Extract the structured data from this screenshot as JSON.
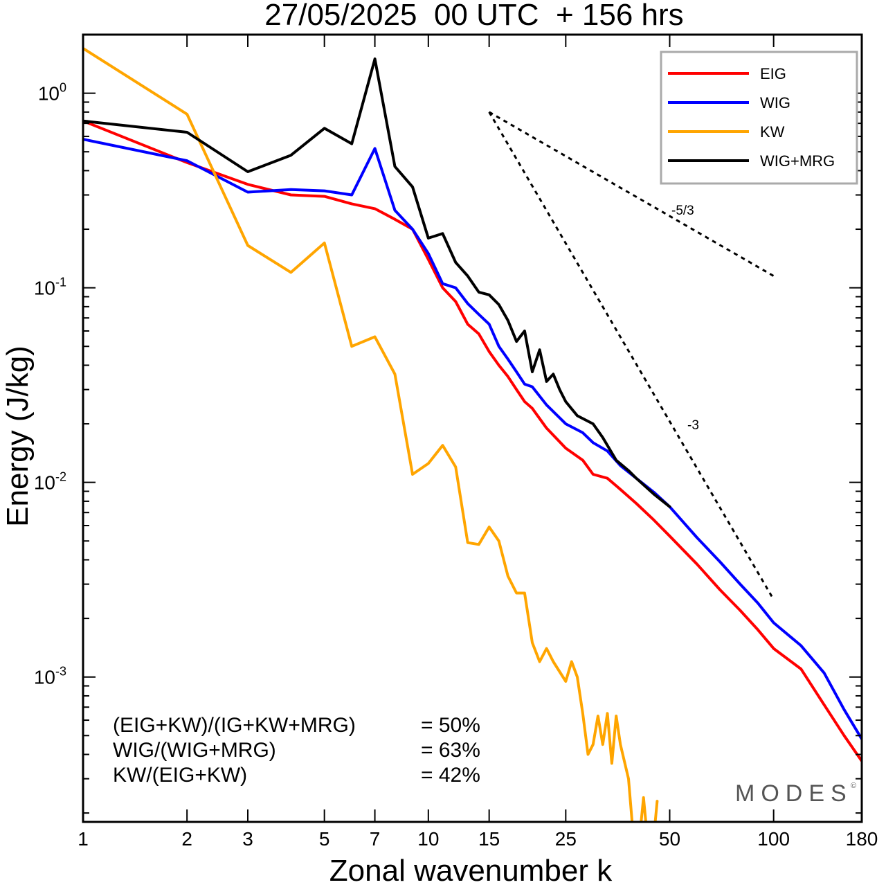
{
  "chart_data": {
    "type": "line",
    "title": "27/05/2025  00 UTC  + 156 hrs",
    "xlabel": "Zonal wavenumber k",
    "ylabel": "Energy (J/kg)",
    "xscale": "log",
    "yscale": "log",
    "xlim": [
      1,
      180
    ],
    "ylim": [
      0.00018,
      2.0
    ],
    "x_ticks": [
      1,
      2,
      3,
      5,
      7,
      10,
      15,
      25,
      50,
      100,
      180
    ],
    "y_ticks": [
      {
        "value": 1,
        "base": "10",
        "exp": "0"
      },
      {
        "value": 0.1,
        "base": "10",
        "exp": "-1"
      },
      {
        "value": 0.01,
        "base": "10",
        "exp": "-2"
      },
      {
        "value": 0.001,
        "base": "10",
        "exp": "-3"
      }
    ],
    "legend_position": "top-right",
    "series": [
      {
        "name": "EIG",
        "color": "#ff0000",
        "x": [
          1,
          2,
          3,
          4,
          5,
          6,
          7,
          8,
          9,
          10,
          11,
          12,
          13,
          14,
          15,
          16,
          17,
          18,
          19,
          20,
          22,
          25,
          28,
          30,
          33,
          36,
          40,
          45,
          50,
          60,
          70,
          80,
          90,
          100,
          120,
          140,
          160,
          180
        ],
        "y": [
          0.72,
          0.44,
          0.34,
          0.3,
          0.295,
          0.27,
          0.255,
          0.225,
          0.2,
          0.14,
          0.1,
          0.085,
          0.065,
          0.058,
          0.047,
          0.04,
          0.035,
          0.03,
          0.026,
          0.024,
          0.019,
          0.015,
          0.013,
          0.011,
          0.0105,
          0.0092,
          0.0078,
          0.0064,
          0.0053,
          0.0038,
          0.0028,
          0.0022,
          0.00175,
          0.0014,
          0.0011,
          0.00072,
          0.0005,
          0.00037
        ]
      },
      {
        "name": "WIG",
        "color": "#0000ff",
        "x": [
          1,
          2,
          3,
          4,
          5,
          6,
          7,
          8,
          9,
          10,
          11,
          12,
          13,
          14,
          15,
          16,
          17,
          18,
          19,
          20,
          22,
          25,
          28,
          30,
          33,
          36,
          40,
          45,
          50,
          60,
          70,
          80,
          90,
          100,
          120,
          140,
          160,
          180
        ],
        "y": [
          0.58,
          0.45,
          0.31,
          0.32,
          0.315,
          0.3,
          0.52,
          0.25,
          0.2,
          0.15,
          0.105,
          0.1,
          0.083,
          0.073,
          0.065,
          0.05,
          0.043,
          0.037,
          0.032,
          0.031,
          0.025,
          0.02,
          0.018,
          0.016,
          0.0145,
          0.0122,
          0.0105,
          0.0089,
          0.0075,
          0.0052,
          0.0039,
          0.003,
          0.0024,
          0.0019,
          0.00145,
          0.00105,
          0.00068,
          0.00048
        ]
      },
      {
        "name": "KW",
        "color": "#ffa500",
        "x": [
          1,
          2,
          3,
          4,
          5,
          6,
          7,
          8,
          9,
          10,
          11,
          12,
          13,
          14,
          15,
          16,
          17,
          18,
          19,
          20,
          21,
          22,
          23,
          25,
          26,
          27,
          28,
          29,
          30,
          31,
          32,
          33,
          34,
          35,
          36,
          38,
          40,
          42,
          44,
          46
        ],
        "y": [
          1.7,
          0.78,
          0.165,
          0.12,
          0.17,
          0.05,
          0.056,
          0.036,
          0.011,
          0.0125,
          0.0155,
          0.012,
          0.0049,
          0.0048,
          0.0059,
          0.005,
          0.0033,
          0.0027,
          0.0027,
          0.0015,
          0.0012,
          0.0014,
          0.0012,
          0.00095,
          0.0012,
          0.001,
          0.00065,
          0.0004,
          0.00045,
          0.00063,
          0.00045,
          0.00065,
          0.00036,
          0.00063,
          0.00045,
          0.0003,
          0.0001,
          0.00024,
          0.0001,
          0.00023
        ]
      },
      {
        "name": "WIG+MRG",
        "color": "#000000",
        "x": [
          1,
          2,
          3,
          4,
          5,
          6,
          7,
          8,
          9,
          10,
          11,
          12,
          13,
          14,
          15,
          16,
          17,
          18,
          19,
          20,
          21,
          22,
          23,
          24,
          25,
          27,
          30,
          32,
          35,
          38,
          40,
          45,
          50
        ],
        "y": [
          0.72,
          0.63,
          0.395,
          0.48,
          0.66,
          0.55,
          1.5,
          0.42,
          0.33,
          0.18,
          0.19,
          0.135,
          0.115,
          0.095,
          0.092,
          0.082,
          0.068,
          0.053,
          0.06,
          0.037,
          0.048,
          0.033,
          0.036,
          0.03,
          0.026,
          0.022,
          0.02,
          0.017,
          0.013,
          0.0115,
          0.0105,
          0.0087,
          0.0075
        ]
      }
    ],
    "reference_lines": [
      {
        "label": "-5/3",
        "x": [
          15,
          100
        ],
        "y": [
          0.8,
          0.115
        ]
      },
      {
        "label": "-3",
        "x": [
          15,
          100
        ],
        "y": [
          0.8,
          0.0025
        ]
      }
    ],
    "annotations": [
      {
        "label": "(EIG+KW)/(IG+KW+MRG)",
        "value": "= 50%"
      },
      {
        "label": "WIG/(WIG+MRG)",
        "value": "= 63%"
      },
      {
        "label": "KW/(EIG+KW)",
        "value": "= 42%"
      }
    ],
    "watermark": "MODES",
    "watermark_mark": "©"
  }
}
